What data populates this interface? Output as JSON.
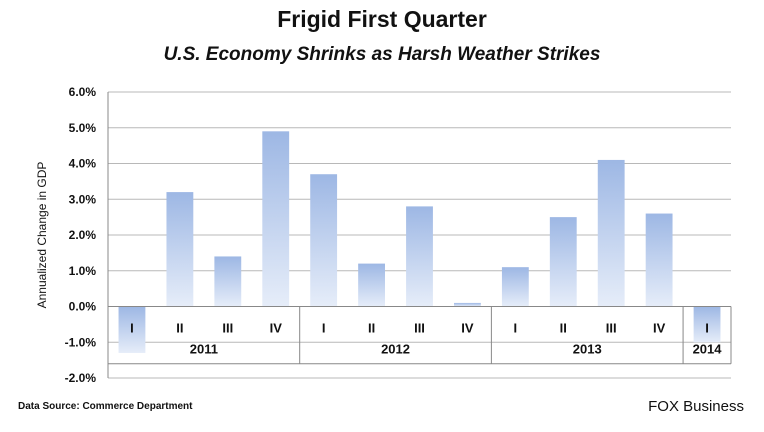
{
  "chart_data": {
    "type": "bar",
    "title": "Frigid First Quarter",
    "subtitle": "U.S. Economy Shrinks as Harsh Weather Strikes",
    "ylabel": "Annualized Change in GDP",
    "xlabel": "",
    "ylim": [
      -2.0,
      6.0
    ],
    "yticks": [
      -2.0,
      -1.0,
      0.0,
      1.0,
      2.0,
      3.0,
      4.0,
      5.0,
      6.0
    ],
    "ytick_format": "%",
    "grid": true,
    "categories": [
      "I",
      "II",
      "III",
      "IV",
      "I",
      "II",
      "III",
      "IV",
      "I",
      "II",
      "III",
      "IV",
      "I"
    ],
    "values": [
      -1.3,
      3.2,
      1.4,
      4.9,
      3.7,
      1.2,
      2.8,
      0.1,
      1.1,
      2.5,
      4.1,
      2.6,
      -1.0
    ],
    "groups": [
      {
        "label": "2011",
        "count": 4
      },
      {
        "label": "2012",
        "count": 4
      },
      {
        "label": "2013",
        "count": 4
      },
      {
        "label": "2014",
        "count": 1
      }
    ],
    "bar_color_top": "#9db7e4",
    "bar_color_bottom": "#e6edf9"
  },
  "footer": {
    "source": "Data Source: Commerce Department",
    "brand": "FOX Business"
  }
}
